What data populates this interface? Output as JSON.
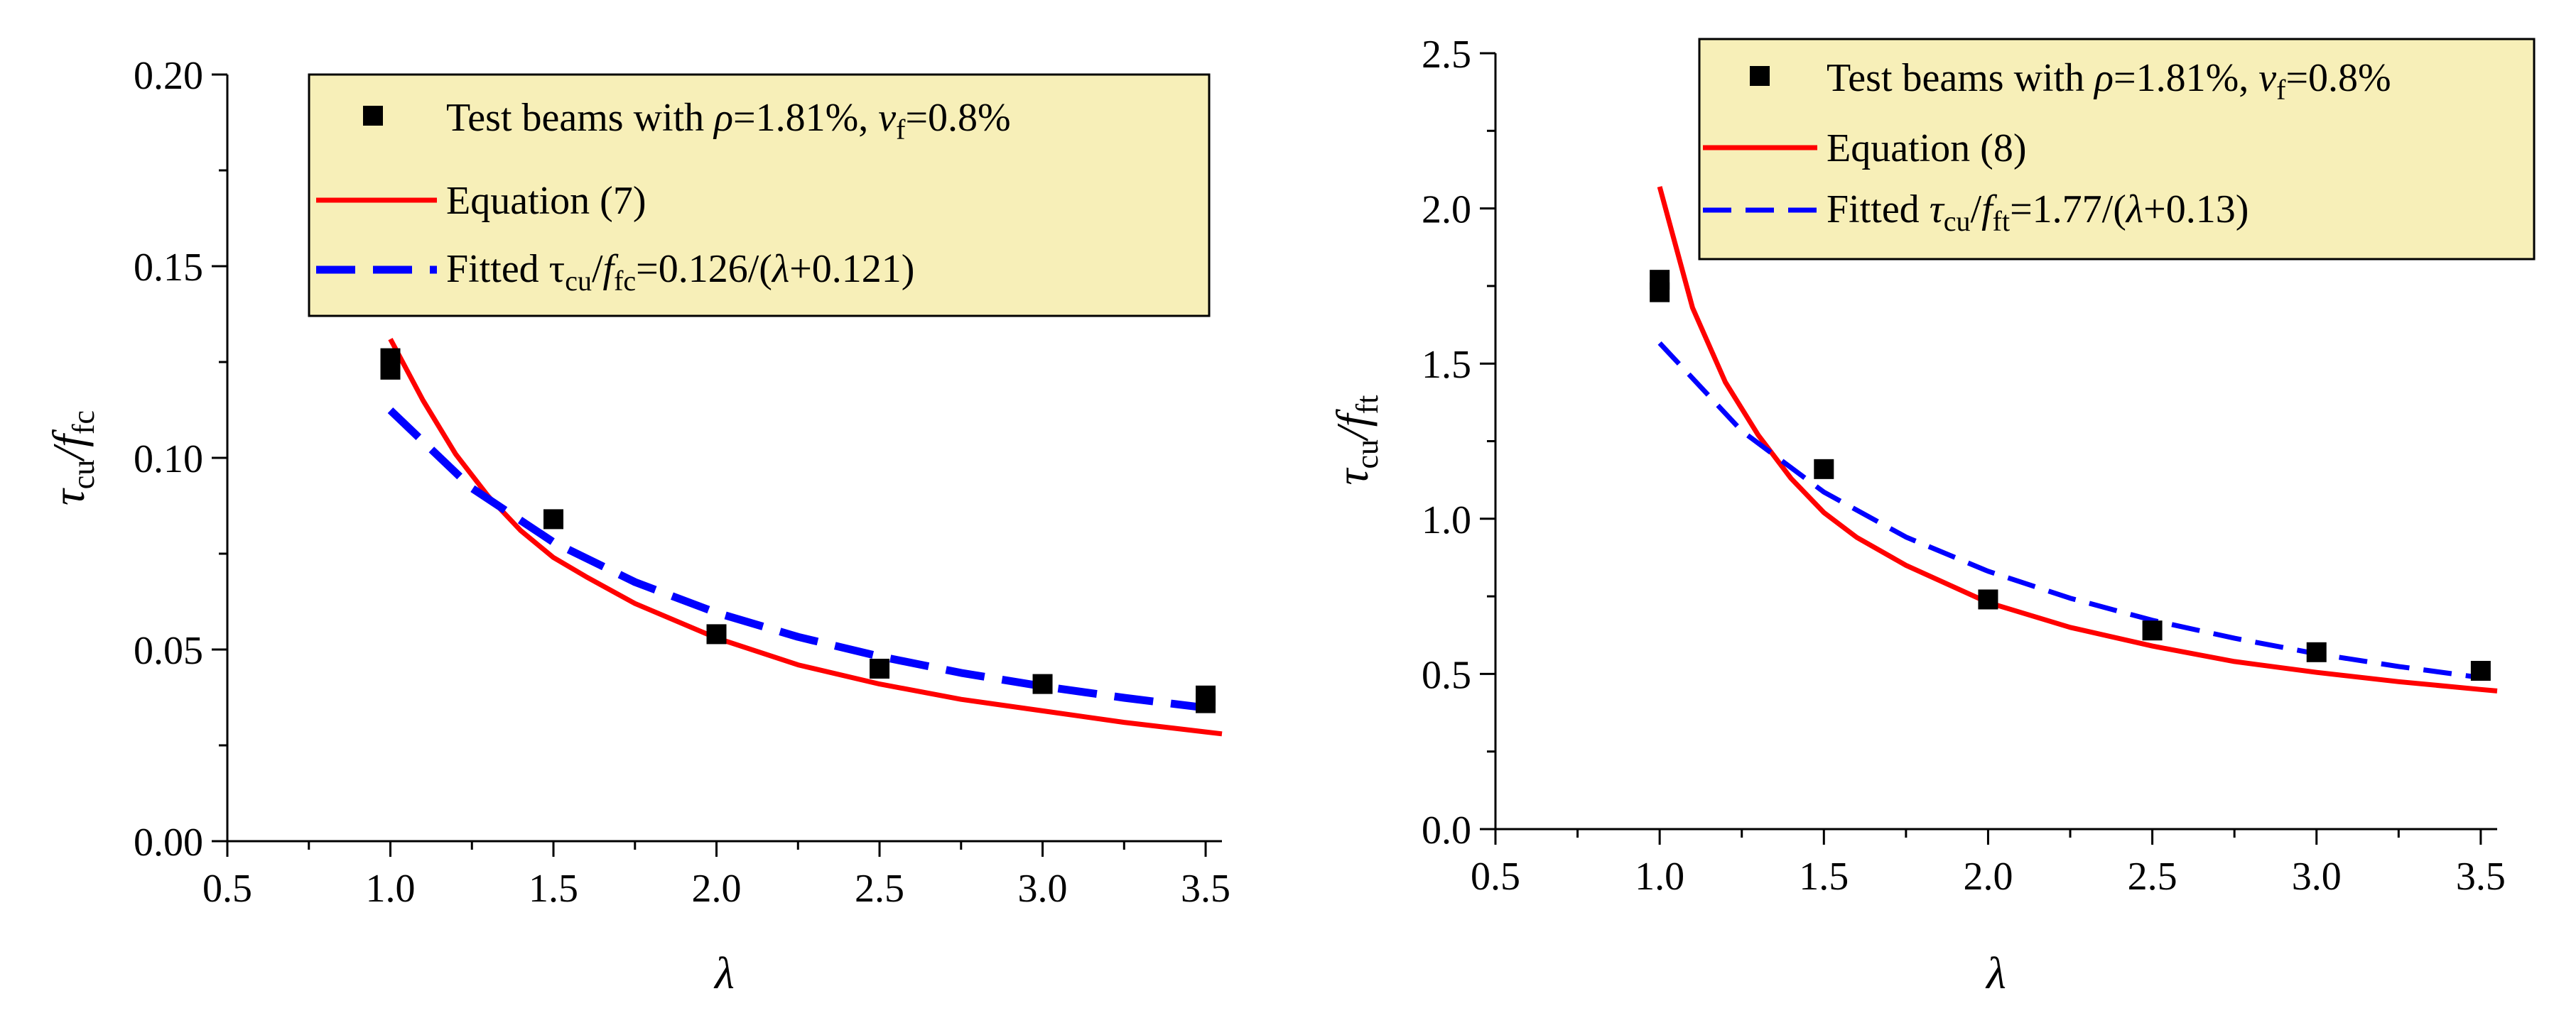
{
  "chart_data": [
    {
      "type": "scatter",
      "title": "",
      "xlabel": "λ",
      "ylabel": {
        "main": "τ",
        "sub1": "cu",
        "mid": "/f",
        "sub2": "fc"
      },
      "xlim": [
        0.5,
        3.55
      ],
      "ylim": [
        0.0,
        0.2
      ],
      "xticks": [
        "0.5",
        "1.0",
        "1.5",
        "2.0",
        "2.5",
        "3.0",
        "3.5"
      ],
      "xtick_values": [
        0.5,
        1.0,
        1.5,
        2.0,
        2.5,
        3.0,
        3.5
      ],
      "yticks": [
        "0.00",
        "0.05",
        "0.10",
        "0.15",
        "0.20"
      ],
      "ytick_values": [
        0.0,
        0.05,
        0.1,
        0.15,
        0.2
      ],
      "legend_position": "top-right",
      "legend": {
        "test_beams": {
          "prefix": "Test beams with ",
          "rho_symbol": "ρ",
          "rho_value": "=1.81%, ",
          "vf_symbol": "v",
          "vf_sub": "f",
          "vf_value": "=0.8%"
        },
        "equation": "Equation (7)",
        "fitted": {
          "prefix": "Fitted τ",
          "sub1": "cu",
          "mid": "/",
          "f_symbol": "f",
          "sub2": "fc",
          "formula_a": "=0.126/(",
          "lambda": "λ",
          "formula_b": "+0.121)"
        }
      },
      "series": [
        {
          "name": "Test beams",
          "kind": "scatter",
          "color": "#000000",
          "x": [
            1.0,
            1.0,
            1.5,
            2.0,
            2.5,
            3.0,
            3.5,
            3.5
          ],
          "y": [
            0.126,
            0.123,
            0.084,
            0.054,
            0.045,
            0.041,
            0.038,
            0.036
          ]
        },
        {
          "name": "Equation (7)",
          "kind": "line",
          "style": "solid",
          "color": "#ff0000",
          "x": [
            1.0,
            1.1,
            1.2,
            1.3,
            1.4,
            1.5,
            1.6,
            1.75,
            2.0,
            2.25,
            2.5,
            2.75,
            3.0,
            3.25,
            3.5,
            3.55
          ],
          "y": [
            0.131,
            0.115,
            0.101,
            0.09,
            0.081,
            0.074,
            0.069,
            0.062,
            0.053,
            0.046,
            0.041,
            0.037,
            0.034,
            0.031,
            0.0285,
            0.028
          ]
        },
        {
          "name": "Fitted",
          "kind": "line",
          "style": "dashed",
          "color": "#0000ff",
          "x": [
            1.0,
            1.25,
            1.5,
            1.75,
            2.0,
            2.25,
            2.5,
            2.75,
            3.0,
            3.25,
            3.5
          ],
          "y": [
            0.1124,
            0.0921,
            0.078,
            0.0676,
            0.0596,
            0.0533,
            0.0482,
            0.0439,
            0.0404,
            0.0374,
            0.0348
          ]
        }
      ]
    },
    {
      "type": "scatter",
      "title": "",
      "xlabel": "λ",
      "ylabel": {
        "main": "τ",
        "sub1": "cu",
        "mid": "/f",
        "sub2": "ft"
      },
      "xlim": [
        0.5,
        3.55
      ],
      "ylim": [
        0.0,
        2.5
      ],
      "xticks": [
        "0.5",
        "1.0",
        "1.5",
        "2.0",
        "2.5",
        "3.0",
        "3.5"
      ],
      "xtick_values": [
        0.5,
        1.0,
        1.5,
        2.0,
        2.5,
        3.0,
        3.5
      ],
      "yticks": [
        "0.0",
        "0.5",
        "1.0",
        "1.5",
        "2.0",
        "2.5"
      ],
      "ytick_values": [
        0.0,
        0.5,
        1.0,
        1.5,
        2.0,
        2.5
      ],
      "legend_position": "top-right",
      "legend": {
        "test_beams": {
          "prefix": "Test beams with ",
          "rho_symbol": "ρ",
          "rho_value": "=1.81%, ",
          "vf_symbol": "v",
          "vf_sub": "f",
          "vf_value": "=0.8%"
        },
        "equation": "Equation (8)",
        "fitted": {
          "prefix": "Fitted ",
          "tau": "τ",
          "sub1": "cu",
          "mid": "/",
          "f_symbol": "f",
          "sub2": "ft",
          "formula_a": "=1.77/(",
          "lambda": "λ",
          "formula_b": "+0.13)"
        }
      },
      "series": [
        {
          "name": "Test beams",
          "kind": "scatter",
          "color": "#000000",
          "x": [
            1.0,
            1.0,
            1.5,
            2.0,
            2.5,
            3.0,
            3.5
          ],
          "y": [
            1.77,
            1.73,
            1.16,
            0.74,
            0.64,
            0.57,
            0.51
          ]
        },
        {
          "name": "Equation (8)",
          "kind": "line",
          "style": "solid",
          "color": "#ff0000",
          "x": [
            1.0,
            1.1,
            1.2,
            1.3,
            1.4,
            1.5,
            1.6,
            1.75,
            2.0,
            2.25,
            2.5,
            2.75,
            3.0,
            3.25,
            3.5,
            3.55
          ],
          "y": [
            2.07,
            1.68,
            1.44,
            1.27,
            1.13,
            1.02,
            0.94,
            0.85,
            0.73,
            0.65,
            0.59,
            0.54,
            0.505,
            0.475,
            0.45,
            0.445
          ]
        },
        {
          "name": "Fitted",
          "kind": "line",
          "style": "dashed",
          "color": "#0000ff",
          "x": [
            1.0,
            1.25,
            1.5,
            1.75,
            2.0,
            2.25,
            2.5,
            2.75,
            3.0,
            3.25,
            3.5
          ],
          "y": [
            1.566,
            1.283,
            1.086,
            0.941,
            0.831,
            0.744,
            0.673,
            0.615,
            0.565,
            0.524,
            0.488
          ]
        }
      ]
    }
  ]
}
